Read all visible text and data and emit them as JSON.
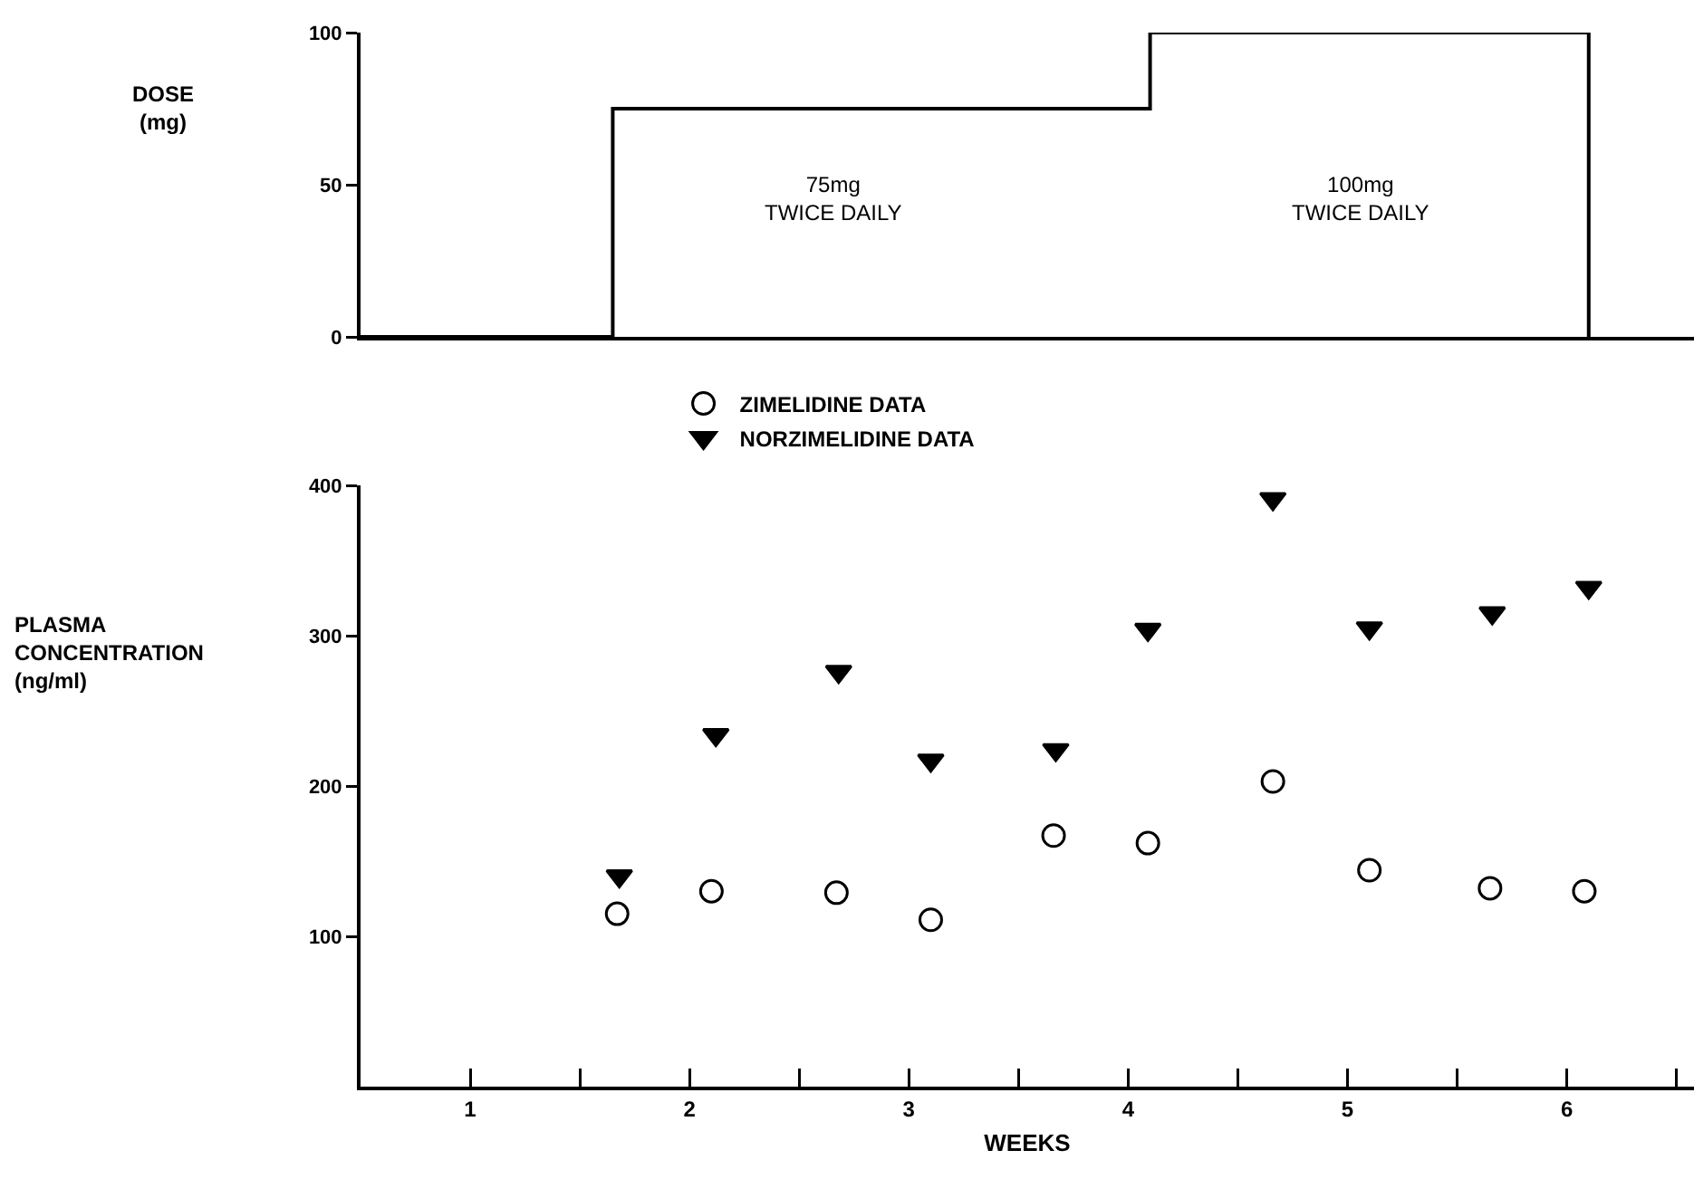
{
  "chart_data": [
    {
      "type": "step",
      "ylabel": "DOSE\n(mg)",
      "x": [
        0,
        1.15,
        3.6,
        5.6
      ],
      "values": [
        0,
        75,
        100,
        0
      ],
      "color": "#000000",
      "xlim": [
        0,
        6.08
      ],
      "ylim": [
        0,
        100
      ],
      "yticks": [
        0,
        50,
        100
      ],
      "tick_labels": "y",
      "grid": false,
      "legend": false,
      "annotations": [
        "75mg\nTWICE DAILY",
        "100mg\nTWICE DAILY"
      ]
    },
    {
      "type": "scatter",
      "xlabel": "WEEKS",
      "ylabel": "PLASMA\nCONCENTRATION\n(ng/ml)",
      "legend": "top",
      "grid": false,
      "xlim": [
        0,
        6.08
      ],
      "ylim": [
        0,
        400
      ],
      "yticks": [
        100,
        200,
        300,
        400
      ],
      "xticks": [
        {
          "value": 0.5,
          "label": "1"
        },
        {
          "value": 1,
          "label": null
        },
        {
          "value": 1.5,
          "label": "2"
        },
        {
          "value": 2,
          "label": null
        },
        {
          "value": 2.5,
          "label": "3"
        },
        {
          "value": 3,
          "label": null
        },
        {
          "value": 3.5,
          "label": "4"
        },
        {
          "value": 4,
          "label": null
        },
        {
          "value": 4.5,
          "label": "5"
        },
        {
          "value": 5,
          "label": null
        },
        {
          "value": 5.5,
          "label": "6"
        },
        {
          "value": 6,
          "label": null
        }
      ],
      "series": [
        {
          "name": "ZIMELIDINE DATA",
          "color": "#000000",
          "marker": "circle",
          "x": [
            1.17,
            1.6,
            2.17,
            2.6,
            3.16,
            3.59,
            4.16,
            4.6,
            5.15,
            5.58
          ],
          "values": [
            115,
            130,
            129,
            111,
            167,
            162,
            203,
            144,
            132,
            130
          ]
        },
        {
          "name": "NORZIMELIDINE DATA",
          "color": "#000000",
          "marker": "triangle",
          "x": [
            1.18,
            1.62,
            2.18,
            2.6,
            3.17,
            3.59,
            4.16,
            4.6,
            5.16,
            5.6
          ],
          "values": [
            140,
            234,
            276,
            217,
            224,
            304,
            391,
            305,
            315,
            332
          ]
        }
      ]
    }
  ]
}
